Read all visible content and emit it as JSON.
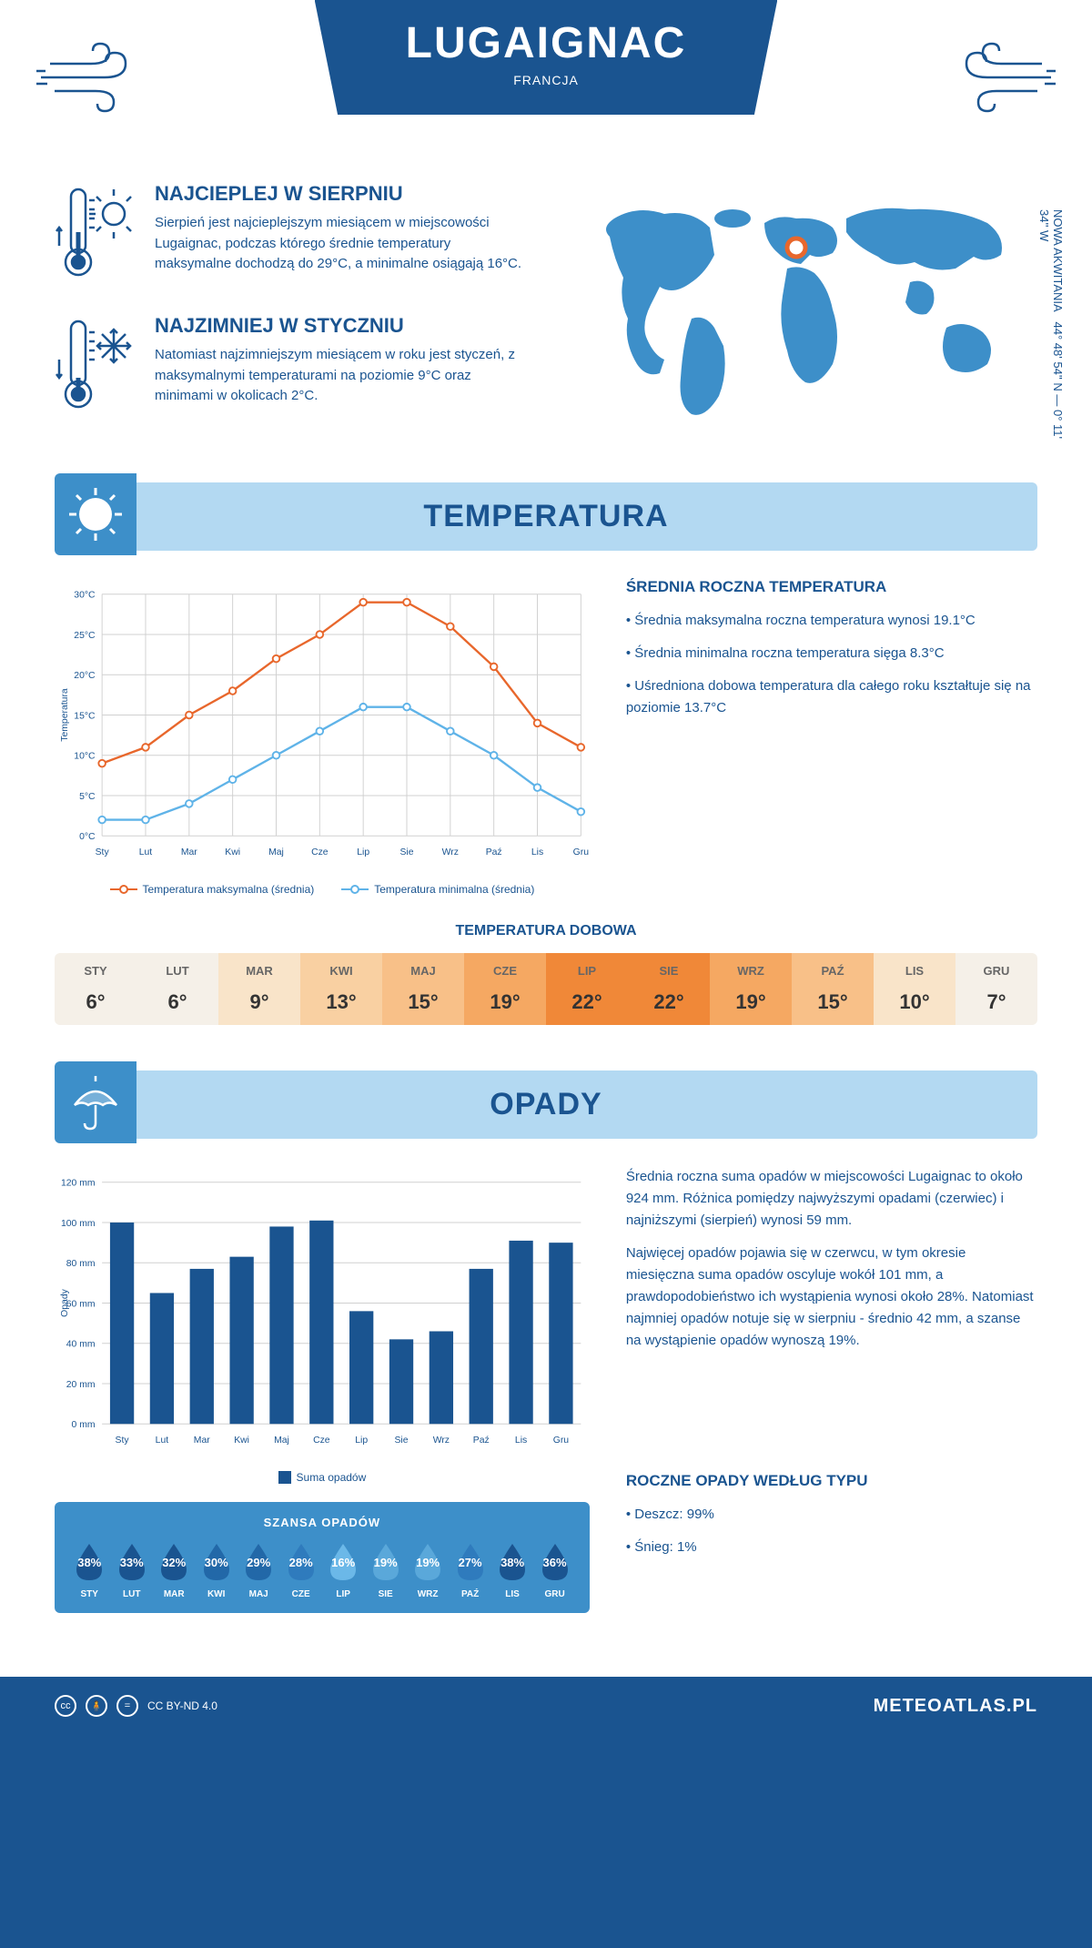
{
  "header": {
    "title": "LUGAIGNAC",
    "subtitle": "FRANCJA"
  },
  "coords": {
    "lat": "44° 48' 54'' N — 0° 11' 34'' W",
    "region": "NOWA AKWITANIA"
  },
  "warmest": {
    "title": "NAJCIEPLEJ W SIERPNIU",
    "text": "Sierpień jest najcieplejszym miesiącem w miejscowości Lugaignac, podczas którego średnie temperatury maksymalne dochodzą do 29°C, a minimalne osiągają 16°C."
  },
  "coldest": {
    "title": "NAJZIMNIEJ W STYCZNIU",
    "text": "Natomiast najzimniejszym miesiącem w roku jest styczeń, z maksymalnymi temperaturami na poziomie 9°C oraz minimami w okolicach 2°C."
  },
  "temperature": {
    "section_title": "TEMPERATURA",
    "chart": {
      "months": [
        "Sty",
        "Lut",
        "Mar",
        "Kwi",
        "Maj",
        "Cze",
        "Lip",
        "Sie",
        "Wrz",
        "Paź",
        "Lis",
        "Gru"
      ],
      "max_values": [
        9,
        11,
        15,
        18,
        22,
        25,
        29,
        29,
        26,
        21,
        14,
        11
      ],
      "min_values": [
        2,
        2,
        4,
        7,
        10,
        13,
        16,
        16,
        13,
        10,
        6,
        3
      ],
      "max_color": "#e8672c",
      "min_color": "#5fb3e8",
      "grid_color": "#d0d0d0",
      "ylim": [
        0,
        30
      ],
      "ytick_step": 5,
      "ylabel": "Temperatura",
      "legend_max": "Temperatura maksymalna (średnia)",
      "legend_min": "Temperatura minimalna (średnia)"
    },
    "annual": {
      "title": "ŚREDNIA ROCZNA TEMPERATURA",
      "items": [
        "Średnia maksymalna roczna temperatura wynosi 19.1°C",
        "Średnia minimalna roczna temperatura sięga 8.3°C",
        "Uśredniona dobowa temperatura dla całego roku kształtuje się na poziomie 13.7°C"
      ]
    },
    "daily": {
      "title": "TEMPERATURA DOBOWA",
      "months": [
        "STY",
        "LUT",
        "MAR",
        "KWI",
        "MAJ",
        "CZE",
        "LIP",
        "SIE",
        "WRZ",
        "PAŹ",
        "LIS",
        "GRU"
      ],
      "values": [
        "6°",
        "6°",
        "9°",
        "13°",
        "15°",
        "19°",
        "22°",
        "22°",
        "19°",
        "15°",
        "10°",
        "7°"
      ],
      "colors": [
        "#f5f0e8",
        "#f5f0e8",
        "#f9e4c9",
        "#f9d0a2",
        "#f8c088",
        "#f5a862",
        "#f08838",
        "#f08838",
        "#f5a862",
        "#f8c088",
        "#f9e4c9",
        "#f5f0e8"
      ]
    }
  },
  "precipitation": {
    "section_title": "OPADY",
    "chart": {
      "months": [
        "Sty",
        "Lut",
        "Mar",
        "Kwi",
        "Maj",
        "Cze",
        "Lip",
        "Sie",
        "Wrz",
        "Paź",
        "Lis",
        "Gru"
      ],
      "values": [
        100,
        65,
        77,
        83,
        98,
        101,
        56,
        42,
        46,
        77,
        91,
        90
      ],
      "bar_color": "#1a5490",
      "ylim": [
        0,
        120
      ],
      "ytick_step": 20,
      "ylabel": "Opady",
      "legend": "Suma opadów"
    },
    "text1": "Średnia roczna suma opadów w miejscowości Lugaignac to około 924 mm. Różnica pomiędzy najwyższymi opadami (czerwiec) i najniższymi (sierpień) wynosi 59 mm.",
    "text2": "Najwięcej opadów pojawia się w czerwcu, w tym okresie miesięczna suma opadów oscyluje wokół 101 mm, a prawdopodobieństwo ich wystąpienia wynosi około 28%. Natomiast najmniej opadów notuje się w sierpniu - średnio 42 mm, a szanse na wystąpienie opadów wynoszą 19%.",
    "chance": {
      "title": "SZANSA OPADÓW",
      "months": [
        "STY",
        "LUT",
        "MAR",
        "KWI",
        "MAJ",
        "CZE",
        "LIP",
        "SIE",
        "WRZ",
        "PAŹ",
        "LIS",
        "GRU"
      ],
      "values": [
        "38%",
        "33%",
        "32%",
        "30%",
        "29%",
        "28%",
        "16%",
        "19%",
        "19%",
        "27%",
        "38%",
        "36%"
      ],
      "colors": [
        "#1a5490",
        "#1a5490",
        "#1a5490",
        "#2268a8",
        "#2268a8",
        "#2f7bbd",
        "#6bb8e8",
        "#5aa8da",
        "#5aa8da",
        "#2f7bbd",
        "#1a5490",
        "#1a5490"
      ]
    },
    "by_type": {
      "title": "ROCZNE OPADY WEDŁUG TYPU",
      "items": [
        "Deszcz: 99%",
        "Śnieg: 1%"
      ]
    }
  },
  "footer": {
    "license": "CC BY-ND 4.0",
    "site": "METEOATLAS.PL"
  },
  "colors": {
    "primary": "#1a5490",
    "light_blue": "#b3d9f2",
    "mid_blue": "#3d8fc9"
  }
}
